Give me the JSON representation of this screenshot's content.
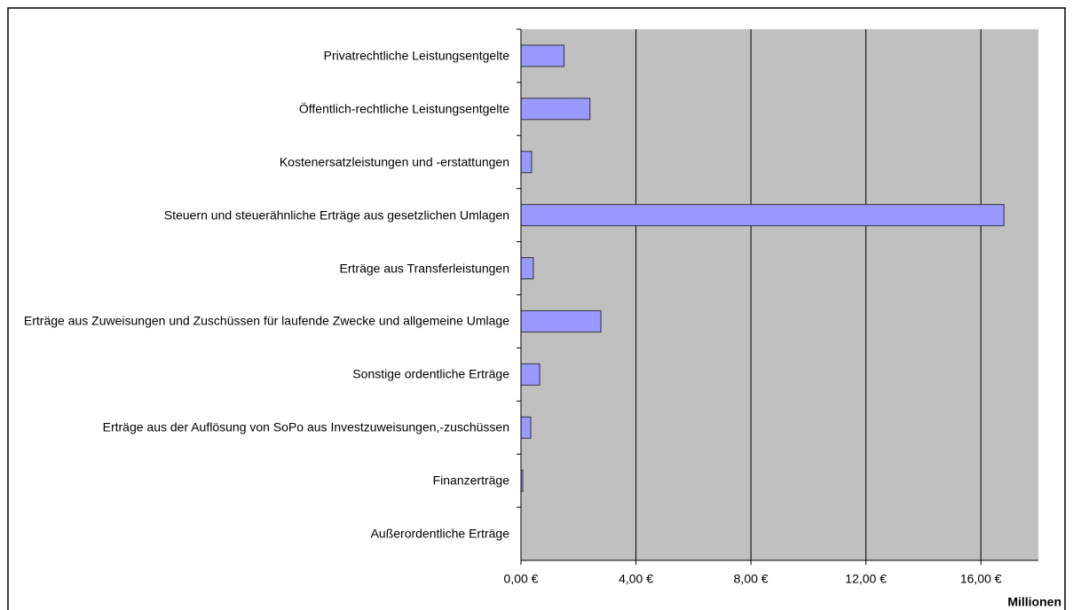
{
  "chart_data": {
    "type": "bar",
    "orientation": "horizontal",
    "categories": [
      "Privatrechtliche Leistungsentgelte",
      "Öffentlich-rechtliche Leistungsentgelte",
      "Kostenersatzleistungen und -erstattungen",
      "Steuern und steuerähnliche Erträge aus gesetzlichen Umlagen",
      "Erträge aus Transferleistungen",
      "Erträge aus Zuweisungen und Zuschüssen für laufende Zwecke und allgemeine Umlage",
      "Sonstige ordentliche Erträge",
      "Erträge aus der Auflösung von SoPo aus Investzuweisungen,-zuschüssen",
      "Finanzerträge",
      "Außerordentliche Erträge"
    ],
    "values": [
      1.5,
      2.4,
      0.37,
      16.8,
      0.43,
      2.78,
      0.65,
      0.34,
      0.06,
      0
    ],
    "color": "#9999ff",
    "xlim": [
      0,
      18
    ],
    "xticks": [
      {
        "value": 0,
        "label": "0,00 €"
      },
      {
        "value": 4,
        "label": "4,00 €"
      },
      {
        "value": 8,
        "label": "8,00 €"
      },
      {
        "value": 12,
        "label": "12,00 €"
      },
      {
        "value": 16,
        "label": "16,00 €"
      }
    ],
    "xlabel": "Millionen",
    "grid": true
  }
}
